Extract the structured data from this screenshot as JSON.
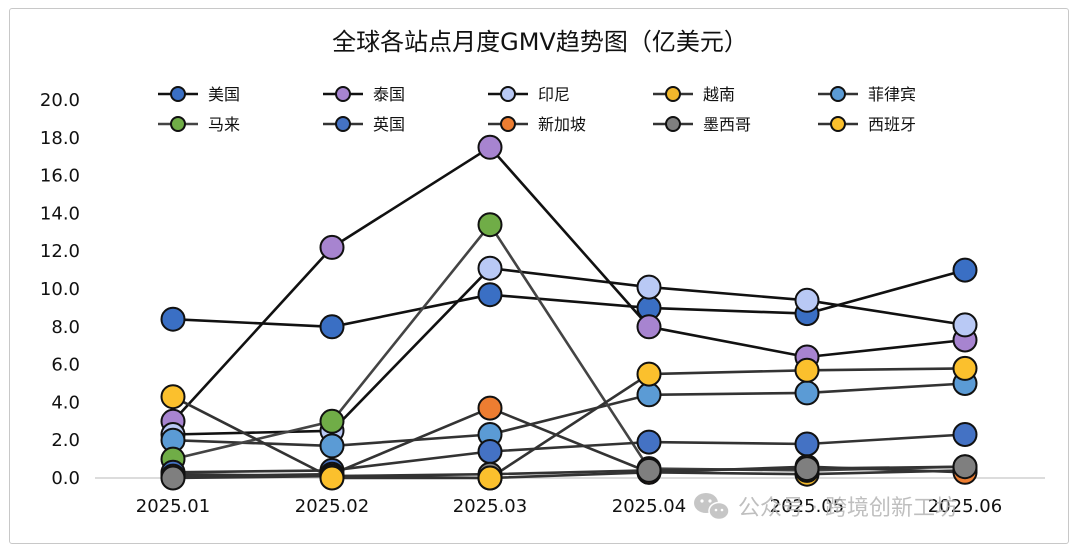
{
  "chart_data": {
    "type": "line",
    "title": "全球各站点月度GMV趋势图（亿美元）",
    "xlabel": "",
    "ylabel": "",
    "categories": [
      "2025.01",
      "2025.02",
      "2025.03",
      "2025.04",
      "2025.05",
      "2025.06"
    ],
    "ylim": [
      0,
      20
    ],
    "yticks": [
      "0.0",
      "2.0",
      "4.0",
      "6.0",
      "8.0",
      "10.0",
      "12.0",
      "14.0",
      "16.0",
      "18.0",
      "20.0"
    ],
    "grid": false,
    "legend_position": "top",
    "series": [
      {
        "name": "美国",
        "values": [
          8.4,
          8.0,
          9.7,
          9.0,
          8.7,
          11.0
        ],
        "color": "#3a6fc4",
        "line": "#111111"
      },
      {
        "name": "泰国",
        "values": [
          3.0,
          12.2,
          17.5,
          8.0,
          6.4,
          7.3
        ],
        "color": "#a784d0",
        "line": "#111111"
      },
      {
        "name": "印尼",
        "values": [
          2.3,
          2.5,
          11.1,
          10.1,
          9.4,
          8.1
        ],
        "color": "#b9c9f5",
        "line": "#111111"
      },
      {
        "name": "越南",
        "values": [
          0.2,
          0.1,
          0.0,
          0.3,
          0.2,
          0.4
        ],
        "color": "#f1b72c",
        "line": "#333333"
      },
      {
        "name": "菲律宾",
        "values": [
          2.0,
          1.7,
          2.3,
          4.4,
          4.5,
          5.0
        ],
        "color": "#5b9bd5",
        "line": "#333333"
      },
      {
        "name": "马来",
        "values": [
          1.0,
          3.0,
          13.4,
          0.5,
          0.4,
          0.6
        ],
        "color": "#70ad47",
        "line": "#444444"
      },
      {
        "name": "英国",
        "values": [
          0.3,
          0.4,
          1.4,
          1.9,
          1.8,
          2.3
        ],
        "color": "#4472c4",
        "line": "#333333"
      },
      {
        "name": "新加坡",
        "values": [
          0.1,
          0.2,
          3.7,
          0.3,
          0.6,
          0.3
        ],
        "color": "#ed7d31",
        "line": "#333333"
      },
      {
        "name": "墨西哥",
        "values": [
          0.0,
          0.1,
          0.2,
          0.4,
          0.5,
          0.6
        ],
        "color": "#7f7f7f",
        "line": "#333333"
      },
      {
        "name": "西班牙",
        "values": [
          4.3,
          0.0,
          0.0,
          5.5,
          5.7,
          5.8
        ],
        "color": "#fbc02d",
        "line": "#333333"
      }
    ]
  },
  "watermark": {
    "text": "公众号 · 跨境创新工坊",
    "icon": "wechat-icon"
  }
}
